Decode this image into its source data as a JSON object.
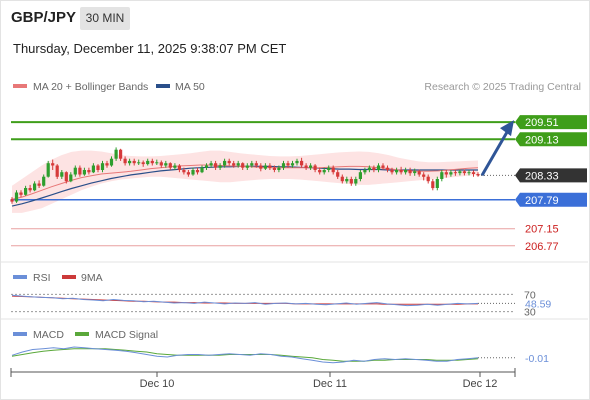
{
  "header": {
    "pair": "GBP/JPY",
    "timeframe": "30 MIN",
    "datetime": "Thursday, December 11, 2025 9:38:07 PM CET"
  },
  "legend": {
    "ma20_label": "MA 20 + Bollinger Bands",
    "ma50_label": "MA 50",
    "credit": "Research © 2025 Trading Central",
    "rsi_label": "RSI",
    "rsi_ma_label": "9MA",
    "macd_label": "MACD",
    "macd_signal_label": "MACD Signal"
  },
  "colors": {
    "bull": "#2e9e2e",
    "bear": "#d63a3a",
    "ma20": "#e87878",
    "ma50": "#2a4f8a",
    "band_fill": "#fde3e3",
    "resistance": "#3f9e1a",
    "support": "#3b6fd8",
    "target_line": "#e9a0a0",
    "target_text": "#cc2020",
    "current": "#333333",
    "arrow": "#2f5597",
    "rsi": "#6b8fd8",
    "rsi_ma": "#cc3a3a",
    "macd": "#6b8fd8",
    "macd_signal": "#5aa83a"
  },
  "chart_data": {
    "type": "candlestick",
    "ylim": [
      206.5,
      210.0
    ],
    "levels": [
      {
        "value": 209.51,
        "label": "209.51",
        "kind": "resistance"
      },
      {
        "value": 209.13,
        "label": "209.13",
        "kind": "resistance"
      },
      {
        "value": 208.33,
        "label": "208.33",
        "kind": "current"
      },
      {
        "value": 207.79,
        "label": "207.79",
        "kind": "support"
      },
      {
        "value": 207.15,
        "label": "207.15",
        "kind": "target"
      },
      {
        "value": 206.77,
        "label": "206.77",
        "kind": "target"
      }
    ],
    "forecast_target": 209.51,
    "x_labels": [
      "Dec 10",
      "Dec 11",
      "Dec 12"
    ],
    "candles": [
      [
        207.8,
        207.75,
        207.85,
        207.7
      ],
      [
        207.75,
        207.95,
        208.0,
        207.72
      ],
      [
        207.95,
        207.9,
        208.0,
        207.85
      ],
      [
        207.9,
        208.05,
        208.1,
        207.88
      ],
      [
        208.05,
        208.0,
        208.12,
        207.95
      ],
      [
        208.0,
        208.15,
        208.2,
        207.98
      ],
      [
        208.15,
        208.1,
        208.22,
        208.05
      ],
      [
        208.1,
        208.3,
        208.35,
        208.08
      ],
      [
        208.3,
        208.6,
        208.65,
        208.28
      ],
      [
        208.6,
        208.55,
        208.68,
        208.45
      ],
      [
        208.55,
        208.3,
        208.58,
        208.25
      ],
      [
        208.3,
        208.4,
        208.45,
        208.25
      ],
      [
        208.4,
        208.2,
        208.42,
        208.15
      ],
      [
        208.2,
        208.35,
        208.4,
        208.18
      ],
      [
        208.35,
        208.5,
        208.55,
        208.3
      ],
      [
        208.5,
        208.35,
        208.55,
        208.3
      ],
      [
        208.35,
        208.45,
        208.5,
        208.32
      ],
      [
        208.45,
        208.4,
        208.5,
        208.35
      ],
      [
        208.4,
        208.55,
        208.6,
        208.38
      ],
      [
        208.55,
        208.45,
        208.58,
        208.4
      ],
      [
        208.45,
        208.6,
        208.65,
        208.4
      ],
      [
        208.6,
        208.55,
        208.65,
        208.5
      ],
      [
        208.55,
        208.7,
        208.75,
        208.52
      ],
      [
        208.7,
        208.9,
        208.95,
        208.65
      ],
      [
        208.9,
        208.7,
        208.92,
        208.65
      ],
      [
        208.7,
        208.6,
        208.75,
        208.55
      ],
      [
        208.6,
        208.65,
        208.7,
        208.55
      ],
      [
        208.65,
        208.6,
        208.7,
        208.55
      ],
      [
        208.6,
        208.62,
        208.68,
        208.56
      ],
      [
        208.62,
        208.58,
        208.66,
        208.52
      ],
      [
        208.58,
        208.65,
        208.7,
        208.55
      ],
      [
        208.65,
        208.6,
        208.7,
        208.55
      ],
      [
        208.6,
        208.62,
        208.68,
        208.56
      ],
      [
        208.62,
        208.55,
        208.66,
        208.5
      ],
      [
        208.55,
        208.6,
        208.65,
        208.5
      ],
      [
        208.6,
        208.5,
        208.62,
        208.45
      ],
      [
        208.5,
        208.55,
        208.6,
        208.45
      ],
      [
        208.55,
        208.45,
        208.58,
        208.4
      ],
      [
        208.45,
        208.4,
        208.5,
        208.35
      ],
      [
        208.4,
        208.35,
        208.45,
        208.3
      ],
      [
        208.35,
        208.45,
        208.5,
        208.32
      ],
      [
        208.45,
        208.4,
        208.5,
        208.35
      ],
      [
        208.4,
        208.5,
        208.55,
        208.38
      ],
      [
        208.5,
        208.55,
        208.6,
        208.45
      ],
      [
        208.55,
        208.6,
        208.65,
        208.5
      ],
      [
        208.6,
        208.5,
        208.65,
        208.45
      ],
      [
        208.5,
        208.55,
        208.6,
        208.45
      ],
      [
        208.55,
        208.65,
        208.7,
        208.5
      ],
      [
        208.65,
        208.6,
        208.7,
        208.55
      ],
      [
        208.6,
        208.55,
        208.65,
        208.5
      ],
      [
        208.55,
        208.6,
        208.65,
        208.5
      ],
      [
        208.6,
        208.5,
        208.62,
        208.45
      ],
      [
        208.5,
        208.55,
        208.6,
        208.45
      ],
      [
        208.55,
        208.6,
        208.65,
        208.5
      ],
      [
        208.6,
        208.55,
        208.65,
        208.5
      ],
      [
        208.55,
        208.48,
        208.6,
        208.42
      ],
      [
        208.48,
        208.55,
        208.6,
        208.45
      ],
      [
        208.55,
        208.5,
        208.6,
        208.45
      ],
      [
        208.5,
        208.45,
        208.55,
        208.4
      ],
      [
        208.45,
        208.5,
        208.55,
        208.4
      ],
      [
        208.5,
        208.6,
        208.65,
        208.45
      ],
      [
        208.6,
        208.55,
        208.65,
        208.5
      ],
      [
        208.55,
        208.6,
        208.65,
        208.5
      ],
      [
        208.6,
        208.65,
        208.7,
        208.55
      ],
      [
        208.65,
        208.55,
        208.72,
        208.5
      ],
      [
        208.55,
        208.5,
        208.6,
        208.45
      ],
      [
        208.5,
        208.55,
        208.6,
        208.45
      ],
      [
        208.55,
        208.45,
        208.58,
        208.4
      ],
      [
        208.45,
        208.4,
        208.5,
        208.35
      ],
      [
        208.4,
        208.45,
        208.5,
        208.35
      ],
      [
        208.45,
        208.5,
        208.55,
        208.4
      ],
      [
        208.5,
        208.4,
        208.55,
        208.35
      ],
      [
        208.4,
        208.3,
        208.45,
        208.25
      ],
      [
        208.3,
        208.2,
        208.35,
        208.15
      ],
      [
        208.2,
        208.25,
        208.3,
        208.15
      ],
      [
        208.25,
        208.15,
        208.3,
        208.1
      ],
      [
        208.15,
        208.25,
        208.3,
        208.1
      ],
      [
        208.25,
        208.4,
        208.45,
        208.2
      ],
      [
        208.4,
        208.45,
        208.5,
        208.35
      ],
      [
        208.45,
        208.5,
        208.55,
        208.4
      ],
      [
        208.5,
        208.45,
        208.55,
        208.4
      ],
      [
        208.45,
        208.55,
        208.6,
        208.4
      ],
      [
        208.55,
        208.5,
        208.6,
        208.45
      ],
      [
        208.5,
        208.45,
        208.55,
        208.4
      ],
      [
        208.45,
        208.4,
        208.5,
        208.35
      ],
      [
        208.4,
        208.45,
        208.5,
        208.35
      ],
      [
        208.45,
        208.4,
        208.52,
        208.35
      ],
      [
        208.4,
        208.45,
        208.5,
        208.35
      ],
      [
        208.45,
        208.38,
        208.5,
        208.32
      ],
      [
        208.38,
        208.42,
        208.48,
        208.32
      ],
      [
        208.42,
        208.35,
        208.46,
        208.3
      ],
      [
        208.35,
        208.3,
        208.4,
        208.22
      ],
      [
        208.3,
        208.2,
        208.35,
        208.15
      ],
      [
        208.2,
        208.05,
        208.25,
        208.0
      ],
      [
        208.05,
        208.25,
        208.3,
        208.0
      ],
      [
        208.25,
        208.4,
        208.45,
        208.2
      ],
      [
        208.4,
        208.35,
        208.45,
        208.28
      ],
      [
        208.35,
        208.4,
        208.45,
        208.3
      ],
      [
        208.4,
        208.38,
        208.45,
        208.32
      ],
      [
        208.38,
        208.42,
        208.46,
        208.33
      ],
      [
        208.42,
        208.38,
        208.46,
        208.33
      ],
      [
        208.38,
        208.4,
        208.45,
        208.33
      ],
      [
        208.4,
        208.36,
        208.44,
        208.3
      ],
      [
        208.36,
        208.33,
        208.4,
        208.3
      ]
    ],
    "ma20": [
      207.8,
      207.85,
      207.92,
      208.0,
      208.08,
      208.15,
      208.22,
      208.28,
      208.32,
      208.36,
      208.38,
      208.4,
      208.42,
      208.45,
      208.48,
      208.5,
      208.52,
      208.54,
      208.55,
      208.56,
      208.56,
      208.55,
      208.54,
      208.53,
      208.52,
      208.51,
      208.5,
      208.5,
      208.5,
      208.5,
      208.5,
      208.5,
      208.51,
      208.52,
      208.53,
      208.53,
      208.52,
      208.5,
      208.48,
      208.45,
      208.43,
      208.42,
      208.42,
      208.43,
      208.45,
      208.47,
      208.49,
      208.5
    ],
    "bb_upper": [
      208.1,
      208.25,
      208.4,
      208.55,
      208.68,
      208.78,
      208.85,
      208.88,
      208.88,
      208.86,
      208.82,
      208.78,
      208.76,
      208.75,
      208.75,
      208.76,
      208.78,
      208.8,
      208.82,
      208.85,
      208.88,
      208.88,
      208.85,
      208.82,
      208.8,
      208.78,
      208.76,
      208.75,
      208.75,
      208.76,
      208.78,
      208.8,
      208.82,
      208.84,
      208.85,
      208.86,
      208.85,
      208.82,
      208.78,
      208.72,
      208.68,
      208.64,
      208.62,
      208.62,
      208.63,
      208.64,
      208.65,
      208.66
    ],
    "bb_lower": [
      207.5,
      207.5,
      207.55,
      207.6,
      207.7,
      207.8,
      207.9,
      208.0,
      208.08,
      208.15,
      208.2,
      208.24,
      208.26,
      208.28,
      208.3,
      208.3,
      208.28,
      208.26,
      208.24,
      208.22,
      208.2,
      208.18,
      208.18,
      208.2,
      208.22,
      208.24,
      208.25,
      208.25,
      208.25,
      208.24,
      208.22,
      208.2,
      208.18,
      208.16,
      208.14,
      208.12,
      208.12,
      208.14,
      208.16,
      208.18,
      208.2,
      208.22,
      208.24,
      208.26,
      208.28,
      208.3,
      208.32,
      208.34
    ],
    "ma50": [
      207.65,
      207.7,
      207.76,
      207.83,
      207.9,
      207.97,
      208.04,
      208.1,
      208.16,
      208.21,
      208.26,
      208.3,
      208.34,
      208.37,
      208.4,
      208.43,
      208.45,
      208.47,
      208.49,
      208.5,
      208.51,
      208.52,
      208.52,
      208.53,
      208.53,
      208.53,
      208.53,
      208.52,
      208.52,
      208.51,
      208.5,
      208.49,
      208.48,
      208.47,
      208.47,
      208.46,
      208.46,
      208.46,
      208.45,
      208.45,
      208.45,
      208.45,
      208.45,
      208.45,
      208.45,
      208.45,
      208.45,
      208.45
    ],
    "rsi": {
      "ylim": [
        20,
        80
      ],
      "ticks": [
        70,
        30
      ],
      "value_label": "48.59",
      "rsi": [
        68,
        66,
        64,
        63,
        62,
        60,
        61,
        58,
        57,
        55,
        58,
        56,
        55,
        53,
        54,
        52,
        50,
        51,
        49,
        52,
        50,
        48,
        50,
        49,
        51,
        47,
        49,
        50,
        48,
        49,
        47,
        46,
        48,
        50,
        47,
        49,
        51,
        48,
        46,
        44,
        45,
        47,
        45,
        47,
        49,
        48,
        49
      ],
      "ma9": [
        66,
        65,
        64,
        63,
        62,
        61,
        60,
        59,
        58,
        57,
        56,
        55,
        54,
        54,
        53,
        52,
        52,
        51,
        51,
        50,
        50,
        50,
        49,
        49,
        49,
        49,
        49,
        49,
        48,
        48,
        48,
        48,
        48,
        48,
        48,
        48,
        48,
        47,
        47,
        47,
        47,
        47,
        47,
        47,
        47,
        48,
        48
      ]
    },
    "macd": {
      "ylim": [
        -0.18,
        0.18
      ],
      "value_label": "-0.01",
      "macd": [
        0.02,
        0.06,
        0.09,
        0.1,
        0.11,
        0.1,
        0.12,
        0.11,
        0.1,
        0.09,
        0.08,
        0.07,
        0.05,
        0.03,
        0.01,
        0.0,
        0.02,
        0.03,
        0.03,
        0.02,
        0.03,
        0.04,
        0.03,
        0.02,
        0.04,
        0.03,
        0.01,
        0.0,
        -0.02,
        -0.04,
        -0.06,
        -0.07,
        -0.06,
        -0.04,
        -0.05,
        -0.03,
        -0.02,
        -0.03,
        -0.02,
        -0.03,
        -0.04,
        -0.05,
        -0.05,
        -0.03,
        -0.02,
        -0.01
      ],
      "signal": [
        0.01,
        0.03,
        0.05,
        0.07,
        0.08,
        0.09,
        0.1,
        0.1,
        0.1,
        0.1,
        0.09,
        0.08,
        0.07,
        0.06,
        0.04,
        0.03,
        0.02,
        0.02,
        0.02,
        0.02,
        0.02,
        0.03,
        0.03,
        0.03,
        0.03,
        0.03,
        0.02,
        0.01,
        0.0,
        -0.01,
        -0.03,
        -0.04,
        -0.05,
        -0.05,
        -0.05,
        -0.04,
        -0.04,
        -0.03,
        -0.03,
        -0.03,
        -0.03,
        -0.04,
        -0.04,
        -0.04,
        -0.03,
        -0.02
      ]
    }
  }
}
